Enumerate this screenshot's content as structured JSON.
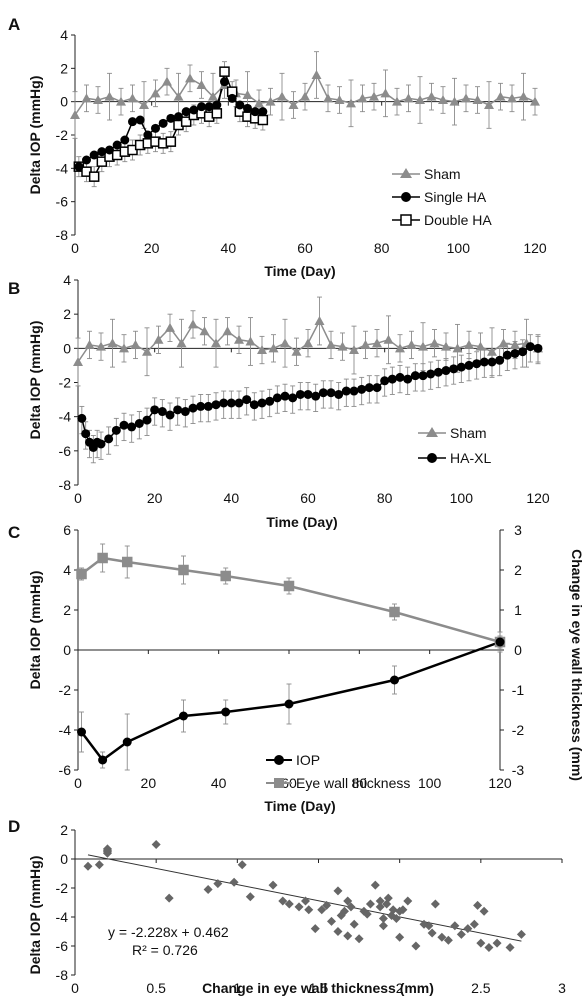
{
  "panels": {
    "A": {
      "label": "A",
      "ylabel": "Delta IOP (mmHg)",
      "xlabel": "Time (Day)",
      "legend": [
        "Sham",
        "Single HA",
        "Double HA"
      ],
      "yticks": [
        "4",
        "2",
        "0",
        "-2",
        "-4",
        "-6",
        "-8"
      ],
      "xticks": [
        "0",
        "20",
        "40",
        "60",
        "80",
        "100",
        "120"
      ]
    },
    "B": {
      "label": "B",
      "ylabel": "Delta IOP (mmHg)",
      "xlabel": "Time (Day)",
      "legend": [
        "Sham",
        "HA-XL"
      ],
      "yticks": [
        "4",
        "2",
        "0",
        "-2",
        "-4",
        "-6",
        "-8"
      ],
      "xticks": [
        "0",
        "20",
        "40",
        "60",
        "80",
        "100",
        "120"
      ]
    },
    "C": {
      "label": "C",
      "ylabel": "Delta IOP (mmHg)",
      "y2label": "Change in eye wall thickness (mm)",
      "xlabel": "Time (Day)",
      "legend": [
        "IOP",
        "Eye wall thickness"
      ],
      "yticks": [
        "6",
        "4",
        "2",
        "0",
        "-2",
        "-4",
        "-6"
      ],
      "y2ticks": [
        "3",
        "2",
        "1",
        "0",
        "-1",
        "-2",
        "-3"
      ],
      "xticks": [
        "0",
        "20",
        "40",
        "60",
        "80",
        "100",
        "120"
      ]
    },
    "D": {
      "label": "D",
      "ylabel": "Delta IOP (mmHg)",
      "xlabel": "Change in eye wall thickness (mm)",
      "yticks": [
        "2",
        "0",
        "-2",
        "-4",
        "-6",
        "-8"
      ],
      "xticks": [
        "0",
        "0.5",
        "1",
        "1.5",
        "2",
        "2.5",
        "3"
      ],
      "equation": "y = -2.228x + 0.462",
      "r2": "R² = 0.726"
    }
  },
  "colors": {
    "sham": "#8c8c8c",
    "treated": "#000000",
    "errorbar": "#8c8c8c"
  },
  "chart_data": [
    {
      "type": "line",
      "panel": "A",
      "xlim": [
        0,
        120
      ],
      "ylim": [
        -8,
        4
      ],
      "series": [
        {
          "name": "Sham",
          "marker": "triangle",
          "x": [
            0,
            3,
            6,
            9,
            12,
            15,
            18,
            21,
            24,
            27,
            30,
            33,
            36,
            39,
            42,
            45,
            48,
            51,
            54,
            57,
            60,
            63,
            66,
            69,
            72,
            75,
            78,
            81,
            84,
            87,
            90,
            93,
            96,
            99,
            102,
            105,
            108,
            111,
            114,
            117,
            120
          ],
          "y": [
            -0.8,
            0.2,
            0.1,
            0.3,
            0.0,
            0.2,
            -0.2,
            0.5,
            1.2,
            0.3,
            1.4,
            1.0,
            0.3,
            1.0,
            0.5,
            0.4,
            -0.1,
            0.0,
            0.3,
            -0.2,
            0.3,
            1.6,
            0.2,
            0.1,
            -0.1,
            0.2,
            0.3,
            0.5,
            0.0,
            0.2,
            0.1,
            0.3,
            0.1,
            0.0,
            0.2,
            0.1,
            -0.2,
            0.3,
            0.2,
            0.3,
            0.0
          ]
        },
        {
          "name": "Single HA",
          "marker": "circle",
          "x": [
            1,
            3,
            5,
            7,
            9,
            11,
            13,
            15,
            17,
            19,
            21,
            23,
            25,
            27,
            29,
            31,
            33,
            35,
            37,
            39,
            41,
            43,
            45,
            47,
            49
          ],
          "y": [
            -3.9,
            -3.5,
            -3.2,
            -3.0,
            -2.9,
            -2.6,
            -2.3,
            -1.2,
            -1.1,
            -2.0,
            -1.6,
            -1.3,
            -1.0,
            -0.9,
            -0.6,
            -0.5,
            -0.3,
            -0.3,
            -0.2,
            1.2,
            0.2,
            -0.2,
            -0.4,
            -0.6,
            -0.6
          ]
        },
        {
          "name": "Double HA",
          "marker": "square",
          "x": [
            1,
            3,
            5,
            7,
            9,
            11,
            13,
            15,
            17,
            19,
            21,
            23,
            25,
            27,
            29,
            31,
            33,
            35,
            37,
            39,
            41,
            43,
            45,
            47,
            49
          ],
          "y": [
            -3.9,
            -4.2,
            -4.5,
            -3.6,
            -3.3,
            -3.2,
            -3.0,
            -2.9,
            -2.6,
            -2.5,
            -2.4,
            -2.5,
            -2.4,
            -1.4,
            -1.2,
            -0.8,
            -0.7,
            -0.9,
            -0.7,
            1.8,
            0.6,
            -0.6,
            -0.9,
            -1.0,
            -1.1
          ]
        }
      ]
    },
    {
      "type": "line",
      "panel": "B",
      "xlim": [
        0,
        120
      ],
      "ylim": [
        -8,
        4
      ],
      "series": [
        {
          "name": "Sham",
          "marker": "triangle",
          "x": [
            0,
            3,
            6,
            9,
            12,
            15,
            18,
            21,
            24,
            27,
            30,
            33,
            36,
            39,
            42,
            45,
            48,
            51,
            54,
            57,
            60,
            63,
            66,
            69,
            72,
            75,
            78,
            81,
            84,
            87,
            90,
            93,
            96,
            99,
            102,
            105,
            108,
            111,
            114,
            117,
            120
          ],
          "y": [
            -0.8,
            0.2,
            0.1,
            0.3,
            0.0,
            0.2,
            -0.2,
            0.5,
            1.2,
            0.3,
            1.4,
            1.0,
            0.3,
            1.0,
            0.5,
            0.4,
            -0.1,
            0.0,
            0.3,
            -0.2,
            0.3,
            1.6,
            0.2,
            0.1,
            -0.1,
            0.2,
            0.3,
            0.5,
            0.0,
            0.2,
            0.1,
            0.3,
            0.1,
            0.0,
            0.2,
            0.1,
            -0.2,
            0.3,
            0.2,
            0.3,
            0.0
          ]
        },
        {
          "name": "HA-XL",
          "marker": "circle",
          "x": [
            1,
            2,
            3,
            4,
            5,
            6,
            8,
            10,
            12,
            14,
            16,
            18,
            20,
            22,
            24,
            26,
            28,
            30,
            32,
            34,
            36,
            38,
            40,
            42,
            44,
            46,
            48,
            50,
            52,
            54,
            56,
            58,
            60,
            62,
            64,
            66,
            68,
            70,
            72,
            74,
            76,
            78,
            80,
            82,
            84,
            86,
            88,
            90,
            92,
            94,
            96,
            98,
            100,
            102,
            104,
            106,
            108,
            110,
            112,
            114,
            116,
            118,
            120
          ],
          "y": [
            -4.1,
            -5.0,
            -5.5,
            -5.8,
            -5.5,
            -5.6,
            -5.3,
            -4.8,
            -4.5,
            -4.6,
            -4.4,
            -4.2,
            -3.6,
            -3.7,
            -3.9,
            -3.6,
            -3.7,
            -3.5,
            -3.4,
            -3.4,
            -3.3,
            -3.2,
            -3.2,
            -3.2,
            -3.0,
            -3.3,
            -3.2,
            -3.1,
            -2.9,
            -2.8,
            -2.9,
            -2.7,
            -2.7,
            -2.8,
            -2.6,
            -2.6,
            -2.7,
            -2.5,
            -2.5,
            -2.4,
            -2.3,
            -2.3,
            -1.9,
            -1.8,
            -1.7,
            -1.8,
            -1.6,
            -1.6,
            -1.5,
            -1.4,
            -1.3,
            -1.2,
            -1.1,
            -1.0,
            -0.9,
            -0.8,
            -0.8,
            -0.7,
            -0.4,
            -0.3,
            -0.2,
            0.1,
            0.0
          ]
        }
      ]
    },
    {
      "type": "line",
      "panel": "C",
      "xlim": [
        0,
        120
      ],
      "ylim": [
        -6,
        6
      ],
      "y2lim": [
        -3,
        3
      ],
      "series": [
        {
          "name": "IOP",
          "axis": "left",
          "marker": "circle",
          "x": [
            1,
            7,
            14,
            30,
            42,
            60,
            90,
            120
          ],
          "y": [
            -4.1,
            -5.5,
            -4.6,
            -3.3,
            -3.1,
            -2.7,
            -1.5,
            0.4
          ],
          "err": [
            1.0,
            0.4,
            1.4,
            0.8,
            0.6,
            1.0,
            0.7,
            0.3
          ]
        },
        {
          "name": "Eye wall thickness",
          "axis": "right",
          "marker": "square",
          "x": [
            1,
            7,
            14,
            30,
            42,
            60,
            90,
            120
          ],
          "y": [
            1.9,
            2.3,
            2.2,
            2.0,
            1.85,
            1.6,
            0.95,
            0.2
          ],
          "err": [
            0.15,
            0.35,
            0.4,
            0.35,
            0.2,
            0.2,
            0.2,
            0.25
          ]
        }
      ]
    },
    {
      "type": "scatter",
      "panel": "D",
      "xlim": [
        0,
        3
      ],
      "ylim": [
        -8,
        2
      ],
      "trendline": {
        "slope": -2.228,
        "intercept": 0.462,
        "r2": 0.726
      },
      "x": [
        0.08,
        0.15,
        0.2,
        0.2,
        0.2,
        0.2,
        0.5,
        0.58,
        0.82,
        0.88,
        0.98,
        1.03,
        1.08,
        1.22,
        1.28,
        1.32,
        1.38,
        1.42,
        1.44,
        1.48,
        1.52,
        1.55,
        1.58,
        1.62,
        1.62,
        1.64,
        1.66,
        1.68,
        1.68,
        1.7,
        1.72,
        1.75,
        1.78,
        1.8,
        1.82,
        1.85,
        1.88,
        1.88,
        1.9,
        1.9,
        1.92,
        1.93,
        1.95,
        1.96,
        1.98,
        2.0,
        2.0,
        2.02,
        2.05,
        2.1,
        2.15,
        2.18,
        2.2,
        2.22,
        2.26,
        2.3,
        2.34,
        2.38,
        2.42,
        2.46,
        2.48,
        2.5,
        2.52,
        2.55,
        2.6,
        2.68,
        2.75
      ],
      "y": [
        -0.5,
        -0.4,
        0.4,
        0.5,
        0.6,
        0.7,
        1.0,
        -2.7,
        -2.1,
        -1.7,
        -1.6,
        -0.4,
        -2.6,
        -1.8,
        -2.9,
        -3.1,
        -3.3,
        -2.9,
        -3.5,
        -4.8,
        -3.5,
        -3.2,
        -4.3,
        -5.0,
        -2.2,
        -3.9,
        -3.6,
        -2.9,
        -5.3,
        -3.3,
        -4.5,
        -5.5,
        -3.6,
        -3.8,
        -3.1,
        -1.8,
        -2.9,
        -3.3,
        -4.1,
        -4.6,
        -3.1,
        -2.7,
        -3.9,
        -3.5,
        -4.1,
        -3.6,
        -5.4,
        -3.5,
        -2.9,
        -6.0,
        -4.5,
        -4.6,
        -5.1,
        -3.1,
        -5.4,
        -5.6,
        -4.6,
        -5.2,
        -4.8,
        -4.5,
        -3.2,
        -5.8,
        -3.6,
        -6.1,
        -5.8,
        -6.1,
        -5.2
      ]
    }
  ]
}
